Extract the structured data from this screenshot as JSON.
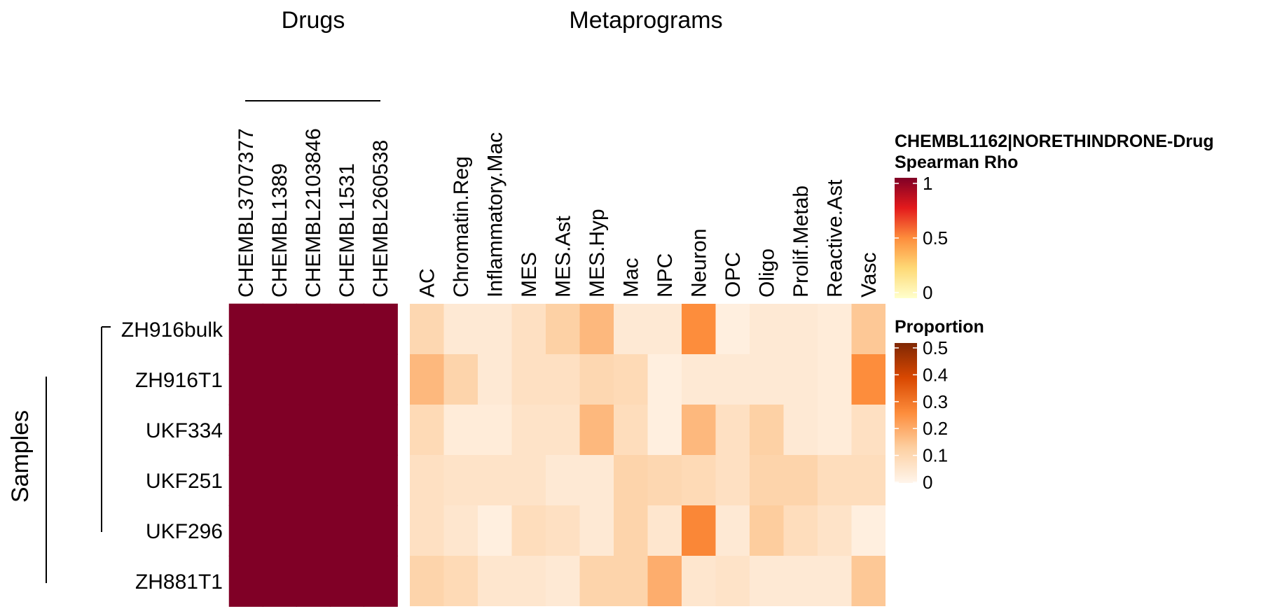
{
  "chart_data": {
    "type": "heatmap",
    "panel_titles": {
      "drugs": "Drugs",
      "metaprograms": "Metaprograms"
    },
    "row_group_label": "Samples",
    "rows": [
      "ZH916bulk",
      "ZH916T1",
      "UKF334",
      "UKF251",
      "UKF296",
      "ZH881T1"
    ],
    "drug_columns": [
      "CHEMBL3707377",
      "CHEMBL1389",
      "CHEMBL2103846",
      "CHEMBL1531",
      "CHEMBL260538"
    ],
    "drug_values": [
      [
        1,
        1,
        1,
        1,
        1
      ],
      [
        1,
        1,
        1,
        1,
        1
      ],
      [
        1,
        1,
        1,
        1,
        1
      ],
      [
        1,
        1,
        1,
        1,
        1
      ],
      [
        1,
        1,
        1,
        1,
        1
      ],
      [
        1,
        1,
        1,
        1,
        1
      ]
    ],
    "metaprogram_columns": [
      "AC",
      "Chromatin.Reg",
      "Inflammatory.Mac",
      "MES",
      "MES.Ast",
      "MES.Hyp",
      "Mac",
      "NPC",
      "Neuron",
      "OPC",
      "Oligo",
      "Prolif.Metab",
      "Reactive.Ast",
      "Vasc"
    ],
    "metaprogram_values": [
      [
        0.1,
        0.04,
        0.04,
        0.07,
        0.12,
        0.17,
        0.04,
        0.04,
        0.25,
        0.02,
        0.04,
        0.04,
        0.03,
        0.14
      ],
      [
        0.17,
        0.11,
        0.04,
        0.07,
        0.07,
        0.1,
        0.09,
        0.02,
        0.04,
        0.04,
        0.04,
        0.04,
        0.03,
        0.25
      ],
      [
        0.09,
        0.03,
        0.03,
        0.06,
        0.06,
        0.17,
        0.08,
        0.02,
        0.17,
        0.07,
        0.12,
        0.04,
        0.03,
        0.07
      ],
      [
        0.07,
        0.06,
        0.06,
        0.06,
        0.04,
        0.04,
        0.11,
        0.1,
        0.09,
        0.07,
        0.11,
        0.11,
        0.08,
        0.08
      ],
      [
        0.07,
        0.05,
        0.02,
        0.08,
        0.07,
        0.04,
        0.11,
        0.05,
        0.26,
        0.04,
        0.13,
        0.08,
        0.06,
        0.02
      ],
      [
        0.11,
        0.09,
        0.05,
        0.05,
        0.04,
        0.11,
        0.11,
        0.19,
        0.05,
        0.06,
        0.04,
        0.04,
        0.04,
        0.14
      ]
    ],
    "legends": [
      {
        "title": "CHEMBL1162|NORETHINDRONE-Drug",
        "subtitle": "Spearman Rho",
        "ticks": [
          "1",
          "0.5",
          "0"
        ],
        "range": [
          0,
          1
        ],
        "colors": [
          "#FFFFCC",
          "#FED976",
          "#FD8D3C",
          "#E31A1C",
          "#800026"
        ]
      },
      {
        "title": "Proportion",
        "ticks": [
          "0.5",
          "0.4",
          "0.3",
          "0.2",
          "0.1",
          "0"
        ],
        "range": [
          0,
          0.5
        ],
        "colors": [
          "#FFF5EB",
          "#FDD0A2",
          "#FD8D3C",
          "#D94801",
          "#7F2704"
        ]
      }
    ]
  }
}
